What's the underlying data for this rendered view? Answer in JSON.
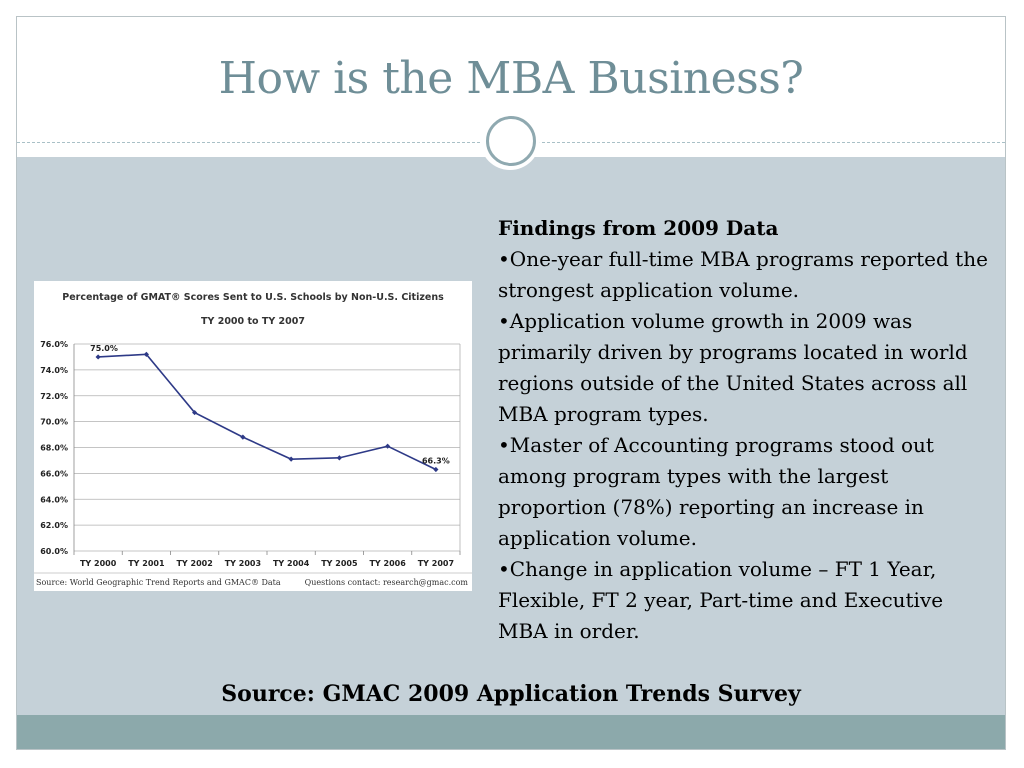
{
  "slide": {
    "title": "How is the MBA Business?",
    "source": "Source: GMAC 2009 Application Trends Survey"
  },
  "findings": {
    "heading": "Findings from 2009 Data",
    "bullets": [
      "•One-year full-time MBA programs reported the strongest application volume.",
      "•Application volume growth in 2009 was primarily driven by programs located in world regions outside of the United States across all MBA program types.",
      "•Master of Accounting programs stood out among program types with the largest proportion (78%) reporting an increase in application volume.",
      "•Change in application volume – FT 1 Year, Flexible,  FT 2 year, Part-time and Executive MBA in order."
    ]
  },
  "chart_data": {
    "type": "line",
    "title": "Percentage of GMAT® Scores Sent to U.S. Schools by Non-U.S. Citizens",
    "subtitle": "TY 2000 to TY 2007",
    "categories": [
      "TY 2000",
      "TY 2001",
      "TY 2002",
      "TY 2003",
      "TY 2004",
      "TY 2005",
      "TY 2006",
      "TY 2007"
    ],
    "values": [
      75.0,
      75.2,
      70.7,
      68.8,
      67.1,
      67.2,
      68.1,
      66.3
    ],
    "point_labels": {
      "0": "75.0%",
      "7": "66.3%"
    },
    "yticks": [
      "60.0%",
      "62.0%",
      "64.0%",
      "66.0%",
      "68.0%",
      "70.0%",
      "72.0%",
      "74.0%",
      "76.0%"
    ],
    "ylim": [
      60,
      76
    ],
    "grid": true,
    "line_color": "#2e3a87",
    "source_left": "Source: World Geographic Trend Reports and GMAC® Data",
    "source_right": "Questions contact: research@gmac.com"
  }
}
